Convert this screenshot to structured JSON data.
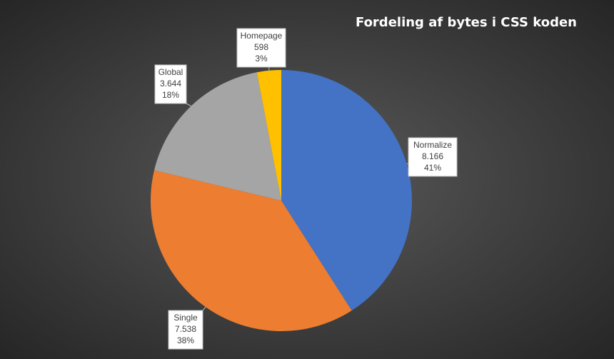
{
  "chart_data": {
    "type": "pie",
    "title": "Fordeling af bytes i CSS koden",
    "categories": [
      "Normalize",
      "Single",
      "Global",
      "Homepage"
    ],
    "values": [
      8166,
      7538,
      3644,
      598
    ],
    "value_labels": [
      "8.166",
      "7.538",
      "3.644",
      "598"
    ],
    "percent_labels": [
      "41%",
      "38%",
      "18%",
      "3%"
    ],
    "colors": [
      "#4472c4",
      "#ed7d31",
      "#a5a5a5",
      "#ffc000"
    ]
  }
}
